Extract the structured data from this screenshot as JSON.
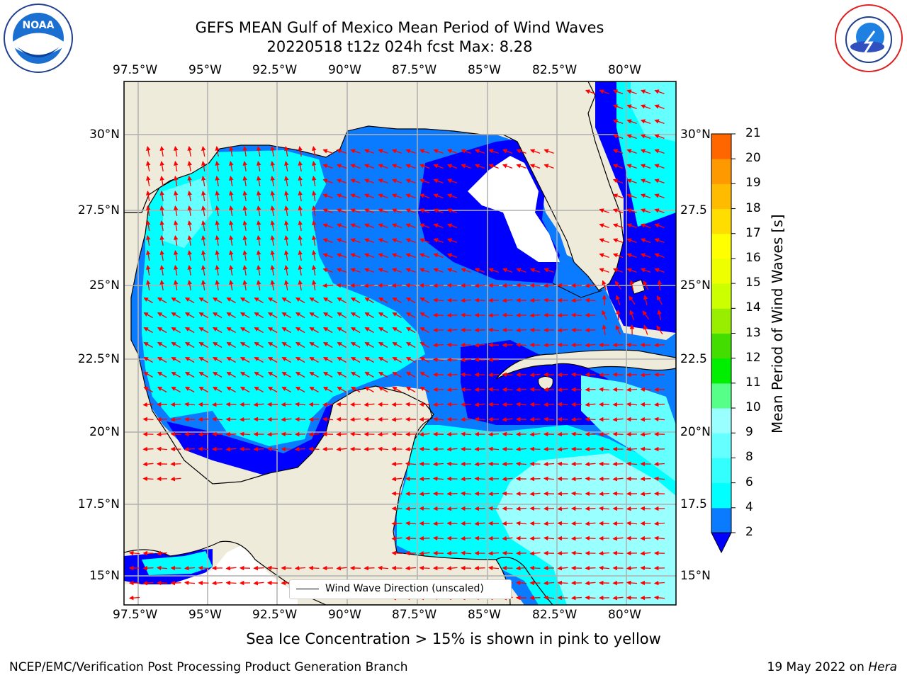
{
  "header": {
    "title_line1": "GEFS MEAN Gulf of Mexico Mean Period of Wind Waves",
    "title_line2": "20220518 t12z 024h fcst   Max: 8.28"
  },
  "logos": {
    "left": "NOAA",
    "right": "NATIONAL WEATHER SERVICE"
  },
  "axes": {
    "lon_ticks": [
      "97.5°W",
      "95°W",
      "92.5°W",
      "90°W",
      "87.5°W",
      "85°W",
      "82.5°W",
      "80°W"
    ],
    "lat_ticks": [
      "30°N",
      "27.5°N",
      "25°N",
      "22.5°N",
      "20°N",
      "17.5°N",
      "15°N"
    ],
    "lat_ticks_right": [
      "30°N",
      "27.5",
      "25°N",
      "22.5",
      "20°N",
      "17.5",
      "15°N"
    ]
  },
  "colorbar": {
    "title": "Mean Period of Wind Waves [s]",
    "labels": [
      "2",
      "4",
      "6",
      "8",
      "9",
      "10",
      "11",
      "12",
      "13",
      "14",
      "15",
      "16",
      "17",
      "18",
      "19",
      "20",
      "21"
    ],
    "colors": [
      "#0a7bff",
      "#00ffff",
      "#33ffff",
      "#66ffff",
      "#99ffff",
      "#55ff88",
      "#00ee00",
      "#44dd00",
      "#99ee00",
      "#ccff00",
      "#eeff00",
      "#ffff00",
      "#ffdd00",
      "#ffbb00",
      "#ff9900",
      "#ff6600",
      "#ff2200",
      "#ff0000"
    ],
    "under_color": "#0000ff"
  },
  "legend": {
    "label": "Wind Wave Direction (unscaled)"
  },
  "subtitle": "Sea Ice Concentration > 15% is shown in pink to yellow",
  "footer": {
    "left": "NCEP/EMC/Verification Post Processing Product Generation Branch",
    "right_prefix": "19 May 2022 on ",
    "right_host": "Hera"
  }
}
